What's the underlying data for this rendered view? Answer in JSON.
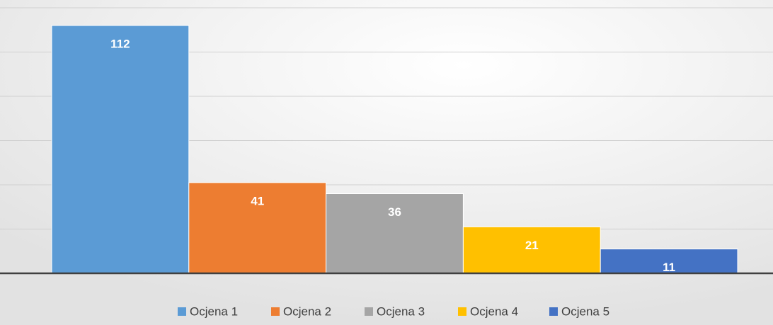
{
  "chart_data": {
    "type": "bar",
    "categories": [
      null
    ],
    "series": [
      {
        "name": "Ocjena 1",
        "color": "#5b9bd5",
        "values": [
          112
        ]
      },
      {
        "name": "Ocjena 2",
        "color": "#ed7d31",
        "values": [
          41
        ]
      },
      {
        "name": "Ocjena 3",
        "color": "#a5a5a5",
        "values": [
          36
        ]
      },
      {
        "name": "Ocjena 4",
        "color": "#ffc000",
        "values": [
          21
        ]
      },
      {
        "name": "Ocjena 5",
        "color": "#4472c4",
        "values": [
          11
        ]
      }
    ],
    "ylim": [
      0,
      120
    ],
    "yticks": [
      0,
      20,
      40,
      60,
      80,
      100,
      120
    ],
    "grid": true,
    "legend": "bottom"
  }
}
